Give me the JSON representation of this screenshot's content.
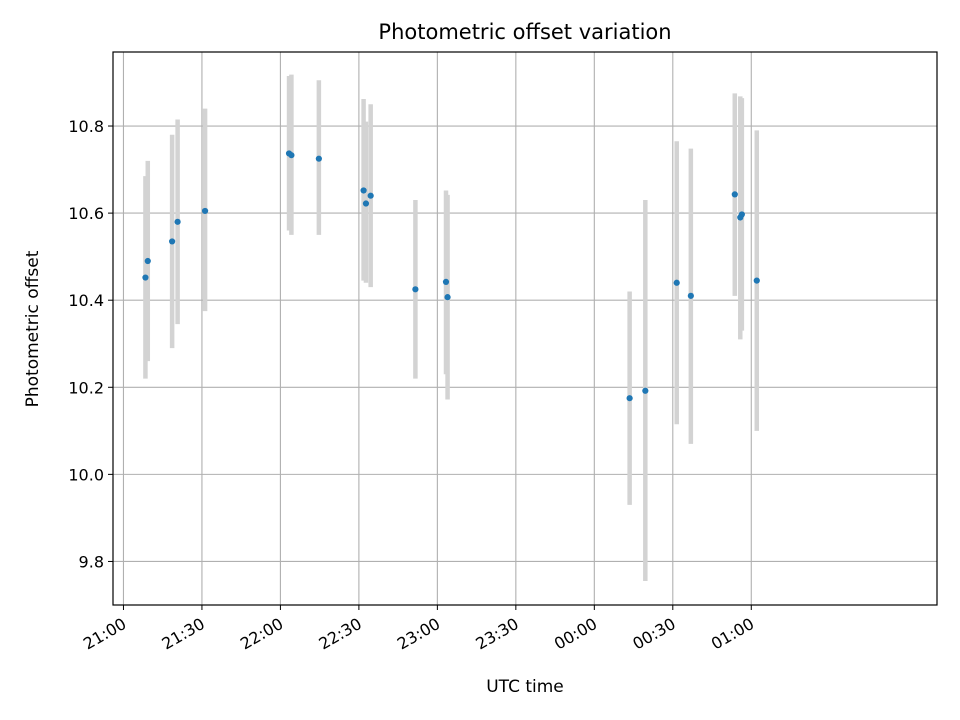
{
  "chart_data": {
    "type": "scatter",
    "title": "Photometric offset variation",
    "xlabel": "UTC time",
    "ylabel": "Photometric offset",
    "xlim_minutes": [
      -4,
      311
    ],
    "ylim": [
      9.7,
      10.97
    ],
    "x_ticks": [
      {
        "minute": 0,
        "label": "21:00"
      },
      {
        "minute": 30,
        "label": "21:30"
      },
      {
        "minute": 60,
        "label": "22:00"
      },
      {
        "minute": 90,
        "label": "22:30"
      },
      {
        "minute": 120,
        "label": "23:00"
      },
      {
        "minute": 150,
        "label": "23:30"
      },
      {
        "minute": 180,
        "label": "00:00"
      },
      {
        "minute": 210,
        "label": "00:30"
      },
      {
        "minute": 240,
        "label": "01:00"
      }
    ],
    "y_ticks": [
      {
        "value": 9.8,
        "label": "9.8"
      },
      {
        "value": 10.0,
        "label": "10.0"
      },
      {
        "value": 10.2,
        "label": "10.2"
      },
      {
        "value": 10.4,
        "label": "10.4"
      },
      {
        "value": 10.6,
        "label": "10.6"
      },
      {
        "value": 10.8,
        "label": "10.8"
      }
    ],
    "grid": true,
    "marker_color": "#1f77b4",
    "errorbar_color": "#d3d3d3",
    "points": [
      {
        "time": "21:08",
        "minute": 8.4,
        "y": 10.452,
        "err_low": 10.22,
        "err_high": 10.685
      },
      {
        "time": "21:09",
        "minute": 9.3,
        "y": 10.49,
        "err_low": 10.26,
        "err_high": 10.72
      },
      {
        "time": "21:18",
        "minute": 18.6,
        "y": 10.535,
        "err_low": 10.29,
        "err_high": 10.78
      },
      {
        "time": "21:20",
        "minute": 20.7,
        "y": 10.58,
        "err_low": 10.345,
        "err_high": 10.815
      },
      {
        "time": "21:31",
        "minute": 31.2,
        "y": 10.605,
        "err_low": 10.375,
        "err_high": 10.84
      },
      {
        "time": "22:03",
        "minute": 63.3,
        "y": 10.737,
        "err_low": 10.56,
        "err_high": 10.915
      },
      {
        "time": "22:04",
        "minute": 64.2,
        "y": 10.733,
        "err_low": 10.55,
        "err_high": 10.918
      },
      {
        "time": "22:14",
        "minute": 74.7,
        "y": 10.725,
        "err_low": 10.55,
        "err_high": 10.905
      },
      {
        "time": "22:31",
        "minute": 91.8,
        "y": 10.652,
        "err_low": 10.445,
        "err_high": 10.862
      },
      {
        "time": "22:32",
        "minute": 92.7,
        "y": 10.622,
        "err_low": 10.44,
        "err_high": 10.81
      },
      {
        "time": "22:34",
        "minute": 94.5,
        "y": 10.64,
        "err_low": 10.43,
        "err_high": 10.85
      },
      {
        "time": "22:51",
        "minute": 111.6,
        "y": 10.425,
        "err_low": 10.22,
        "err_high": 10.63
      },
      {
        "time": "23:02",
        "minute": 123.3,
        "y": 10.442,
        "err_low": 10.23,
        "err_high": 10.652
      },
      {
        "time": "23:03",
        "minute": 123.9,
        "y": 10.407,
        "err_low": 10.172,
        "err_high": 10.642
      },
      {
        "time": "00:13",
        "minute": 193.5,
        "y": 10.175,
        "err_low": 9.93,
        "err_high": 10.42
      },
      {
        "time": "00:19",
        "minute": 199.5,
        "y": 10.192,
        "err_low": 9.755,
        "err_high": 10.63
      },
      {
        "time": "00:31",
        "minute": 211.5,
        "y": 10.44,
        "err_low": 10.115,
        "err_high": 10.765
      },
      {
        "time": "00:36",
        "minute": 216.9,
        "y": 10.41,
        "err_low": 10.07,
        "err_high": 10.748
      },
      {
        "time": "00:53",
        "minute": 233.7,
        "y": 10.643,
        "err_low": 10.41,
        "err_high": 10.875
      },
      {
        "time": "00:55",
        "minute": 235.8,
        "y": 10.59,
        "err_low": 10.31,
        "err_high": 10.868
      },
      {
        "time": "00:56",
        "minute": 236.4,
        "y": 10.597,
        "err_low": 10.33,
        "err_high": 10.864
      },
      {
        "time": "01:02",
        "minute": 242.1,
        "y": 10.445,
        "err_low": 10.1,
        "err_high": 10.79
      }
    ]
  }
}
